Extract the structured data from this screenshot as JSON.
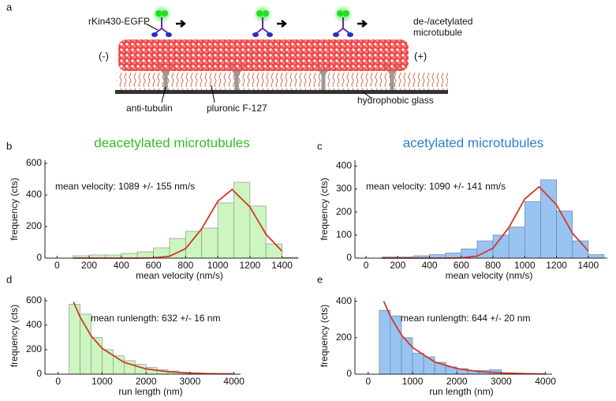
{
  "diagram": {
    "panel": "a",
    "kinesin": "rKin430-EGFP",
    "microtubule": [
      "de-/acetylated",
      "microtubule"
    ],
    "minus_end": "(-)",
    "plus_end": "(+)",
    "antibody": "anti-tubulin",
    "surfactant": "pluronic F-127",
    "surface": "hydrophobic glass"
  },
  "chart_data": [
    {
      "type": "histogram",
      "panel": "b",
      "title": "deacetylated microtubules",
      "title_color": "#33bb22",
      "annotation": "mean velocity: 1089 +/- 155 nm/s",
      "x_label": "mean velocity (nm/s)",
      "y_label": "frequency (cts)",
      "bins": [
        100,
        200,
        300,
        400,
        500,
        600,
        700,
        800,
        900,
        1000,
        1100,
        1200,
        1300,
        1400,
        1500
      ],
      "counts": [
        15,
        20,
        20,
        30,
        40,
        65,
        125,
        170,
        190,
        350,
        480,
        330,
        90,
        5
      ],
      "color": "#ccf5c0",
      "edge_color": "#8c9a8c",
      "fit": {
        "x": [
          100,
          200,
          300,
          400,
          500,
          600,
          700,
          800,
          900,
          1000,
          1089,
          1200,
          1300,
          1400
        ],
        "values": [
          0,
          0,
          0,
          0,
          0,
          2,
          12,
          60,
          186,
          360,
          435,
          324,
          151,
          44
        ],
        "color": "#d03a28"
      },
      "xlim": [
        -75,
        1500
      ],
      "ylim": [
        0,
        620
      ],
      "xticks": [
        0,
        200,
        400,
        600,
        800,
        1000,
        1200,
        1400
      ],
      "yticks": [
        0,
        200,
        400,
        600
      ]
    },
    {
      "type": "histogram",
      "panel": "c",
      "title": "acetylated microtubules",
      "title_color": "#2a7fd0",
      "annotation": "mean velocity: 1090 +/- 141 nm/s",
      "x_label": "mean velocity (nm/s)",
      "y_label": "frequency (cts)",
      "bins": [
        100,
        200,
        300,
        400,
        500,
        600,
        700,
        800,
        900,
        1000,
        1100,
        1200,
        1300,
        1400,
        1500
      ],
      "counts": [
        5,
        5,
        10,
        15,
        22,
        40,
        75,
        100,
        135,
        245,
        340,
        205,
        75,
        15
      ],
      "color": "#99c4f2",
      "edge_color": "#6a84a8",
      "fit": {
        "x": [
          100,
          200,
          300,
          400,
          500,
          600,
          700,
          800,
          900,
          1000,
          1090,
          1200,
          1300,
          1400
        ],
        "values": [
          0,
          0,
          0,
          0,
          0,
          1,
          9,
          43,
          133,
          257,
          310,
          231,
          108,
          31
        ],
        "color": "#d03a28"
      },
      "xlim": [
        -70,
        1520
      ],
      "ylim": [
        0,
        425
      ],
      "xticks": [
        0,
        200,
        400,
        600,
        800,
        1000,
        1200,
        1400
      ],
      "yticks": [
        0,
        100,
        200,
        300,
        400
      ]
    },
    {
      "type": "histogram",
      "panel": "d",
      "annotation": "mean runlength: 632 +/- 16 nm",
      "x_label": "run length (nm)",
      "y_label": "frequency (cts)",
      "bins": [
        250,
        500,
        750,
        1000,
        1250,
        1500,
        1750,
        2000,
        2250,
        2500,
        2750,
        3000
      ],
      "counts": [
        570,
        490,
        300,
        200,
        150,
        110,
        80,
        55,
        35,
        25,
        15
      ],
      "color": "#ccf5c0",
      "edge_color": "#8c9a8c",
      "fit": {
        "x": [
          350,
          500,
          750,
          1000,
          1500,
          2000,
          2500,
          3000,
          3500,
          4000
        ],
        "values": [
          590,
          466,
          313,
          211,
          96,
          43,
          20,
          9,
          4,
          2
        ],
        "color": "#d03a28"
      },
      "xlim": [
        -300,
        4150
      ],
      "ylim": [
        0,
        625
      ],
      "xticks": [
        0,
        1000,
        2000,
        3000,
        4000
      ],
      "yticks": [
        0,
        200,
        400,
        600
      ]
    },
    {
      "type": "histogram",
      "panel": "e",
      "annotation": "mean runlength: 644 +/- 20 nm",
      "x_label": "run length (nm)",
      "y_label": "frequency (cts)",
      "bins": [
        250,
        500,
        750,
        1000,
        1250,
        1500,
        1750,
        2000,
        2250,
        2500,
        2750,
        3000
      ],
      "counts": [
        350,
        320,
        200,
        115,
        95,
        65,
        40,
        30,
        20,
        20,
        25
      ],
      "color": "#99c4f2",
      "edge_color": "#6a84a8",
      "fit": {
        "x": [
          350,
          500,
          750,
          1000,
          1500,
          2000,
          2500,
          3000,
          3500,
          4000
        ],
        "values": [
          400,
          317,
          215,
          146,
          67,
          31,
          14,
          7,
          3,
          1
        ],
        "color": "#d03a28"
      },
      "xlim": [
        -300,
        4150
      ],
      "ylim": [
        0,
        420
      ],
      "xticks": [
        0,
        1000,
        2000,
        3000,
        4000
      ],
      "yticks": [
        0,
        200,
        400
      ]
    }
  ]
}
